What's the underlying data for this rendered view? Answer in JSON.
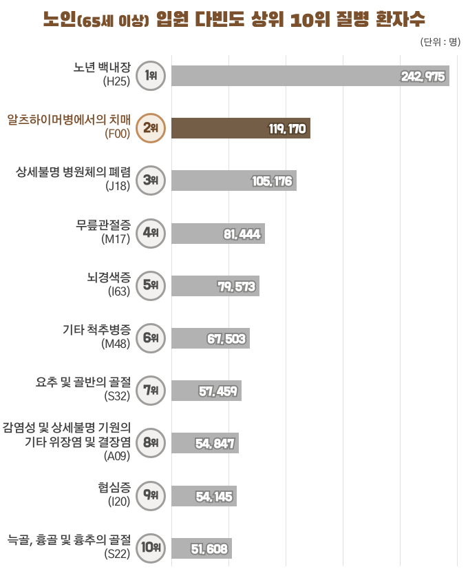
{
  "title": "노인(65세 이상) 입원 다빈도 상위 10위 질병 환자수",
  "title_segments": [
    {
      "text": "노인",
      "small": false
    },
    {
      "text": "(65세 이상)",
      "small": true
    },
    {
      "text": " 입원 다빈도 상위 10위 질병 환자수",
      "small": false
    }
  ],
  "unit_label": "(단위 : 명)",
  "rank_suffix": "위",
  "colors": {
    "title_brown": "#7a502d",
    "bar_gray": "#b3b2b2",
    "bar_brown": "#745e48",
    "row_label_dark": "#3e3e3e",
    "row_label_brown": "#7a4c28",
    "badge_gray_border": "#9e9d9b",
    "badge_gray_fill": "#f2f1ef",
    "badge_gray_text": "#4d4d4d",
    "badge_brown_border": "#c18d5c",
    "badge_brown_fill": "#f5ece2",
    "badge_brown_text": "#6b4423",
    "value_text": "#ffffff",
    "value_outline_gray": "#8c8c8c",
    "value_outline_brown": "#55422e",
    "gridline": "#e3e1e0",
    "background": "#ffffff"
  },
  "chart_data": {
    "type": "bar",
    "orientation": "horizontal",
    "title": "노인(65세 이상) 입원 다빈도 상위 10위 질병 환자수",
    "unit": "(단위 : 명)",
    "xlim": [
      0,
      250000
    ],
    "gridline_values": [
      0,
      50000,
      100000,
      150000,
      200000,
      250000
    ],
    "grid": true,
    "legend": false,
    "highlighted_rank": 2,
    "categories": [
      "노년 백내장 (H25)",
      "알츠하이머병에서의 치매 (F00)",
      "상세불명 병원체의 폐렴 (J18)",
      "무릎관절증 (M17)",
      "뇌경색증 (I63)",
      "기타 척추병증 (M48)",
      "요추 및 골반의 골절 (S32)",
      "감염성 및 상세불명 기원의 기타 위장염 및 결장염 (A09)",
      "협심증 (I20)",
      "늑골, 흉골 및 흉추의 골절 (S22)"
    ],
    "values": [
      242975,
      119170,
      105176,
      81444,
      79573,
      67503,
      57459,
      54847,
      54145,
      51608
    ],
    "rows": [
      {
        "rank": "1",
        "name_lines": [
          "노년 백내장"
        ],
        "code": "(H25)",
        "value": 242975,
        "value_label": "242,975",
        "highlight": false
      },
      {
        "rank": "2",
        "name_lines": [
          "알츠하이머병에서의 치매"
        ],
        "code": "(F00)",
        "value": 119170,
        "value_label": "119,170",
        "highlight": true
      },
      {
        "rank": "3",
        "name_lines": [
          "상세불명 병원체의 폐렴"
        ],
        "code": "(J18)",
        "value": 105176,
        "value_label": "105,176",
        "highlight": false
      },
      {
        "rank": "4",
        "name_lines": [
          "무릎관절증"
        ],
        "code": "(M17)",
        "value": 81444,
        "value_label": "81,444",
        "highlight": false
      },
      {
        "rank": "5",
        "name_lines": [
          "뇌경색증"
        ],
        "code": "(I63)",
        "value": 79573,
        "value_label": "79,573",
        "highlight": false
      },
      {
        "rank": "6",
        "name_lines": [
          "기타 척추병증"
        ],
        "code": "(M48)",
        "value": 67503,
        "value_label": "67,503",
        "highlight": false
      },
      {
        "rank": "7",
        "name_lines": [
          "요추 및 골반의 골절"
        ],
        "code": "(S32)",
        "value": 57459,
        "value_label": "57,459",
        "highlight": false
      },
      {
        "rank": "8",
        "name_lines": [
          "감염성 및 상세불명 기원의",
          "기타 위장염 및 결장염"
        ],
        "code": "(A09)",
        "value": 54847,
        "value_label": "54,847",
        "highlight": false
      },
      {
        "rank": "9",
        "name_lines": [
          "협심증"
        ],
        "code": "(I20)",
        "value": 54145,
        "value_label": "54,145",
        "highlight": false
      },
      {
        "rank": "10",
        "name_lines": [
          "늑골, 흉골 및 흉추의 골절"
        ],
        "code": "(S22)",
        "value": 51608,
        "value_label": "51,608",
        "highlight": false
      }
    ]
  }
}
